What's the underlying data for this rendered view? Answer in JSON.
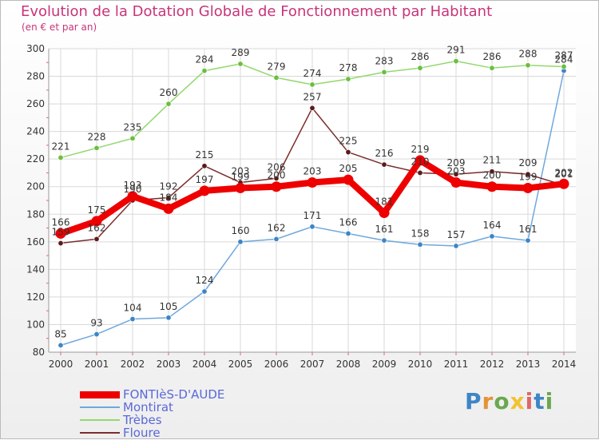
{
  "title": "Evolution de la Dotation Globale de Fonctionnement par Habitant",
  "subtitle": "(en € et par an)",
  "logo_text": "Proxiti",
  "colors": {
    "title": "#c8347a",
    "legend_text": "#5a68d8",
    "grid": "#d9d9d9"
  },
  "chart_data": {
    "type": "line",
    "title": "Evolution de la Dotation Globale de Fonctionnement par Habitant",
    "subtitle": "(en € et par an)",
    "xlabel": "",
    "ylabel": "",
    "ylim": [
      80,
      300
    ],
    "yticks": [
      80,
      100,
      120,
      140,
      160,
      180,
      200,
      220,
      240,
      260,
      280,
      300
    ],
    "grid": true,
    "legend_position": "bottom-left",
    "categories": [
      "2000",
      "2001",
      "2002",
      "2003",
      "2004",
      "2005",
      "2006",
      "2007",
      "2008",
      "2009",
      "2010",
      "2011",
      "2012",
      "2013",
      "2014"
    ],
    "series": [
      {
        "name": "FONTIèS-D'AUDE",
        "color": "#ee0000",
        "marker": "#ee0000",
        "width": "thick",
        "values": [
          166,
          175,
          193,
          184,
          197,
          199,
          200,
          203,
          205,
          181,
          219,
          203,
          200,
          199,
          202
        ]
      },
      {
        "name": "Montirat",
        "color": "#6fa8dc",
        "marker": "#3d85c6",
        "width": "thin",
        "values": [
          85,
          93,
          104,
          105,
          124,
          160,
          162,
          171,
          166,
          161,
          158,
          157,
          164,
          161,
          284
        ]
      },
      {
        "name": "Trèbes",
        "color": "#93d86e",
        "marker": "#6abf3e",
        "width": "thin",
        "values": [
          221,
          228,
          235,
          260,
          284,
          289,
          279,
          274,
          278,
          283,
          286,
          291,
          286,
          288,
          287
        ]
      },
      {
        "name": "Floure",
        "color": "#7b2c2c",
        "marker": "#5c1a1a",
        "width": "thin",
        "values": [
          159,
          162,
          190,
          192,
          215,
          203,
          206,
          257,
          225,
          216,
          210,
          209,
          211,
          209,
          201
        ]
      }
    ]
  }
}
